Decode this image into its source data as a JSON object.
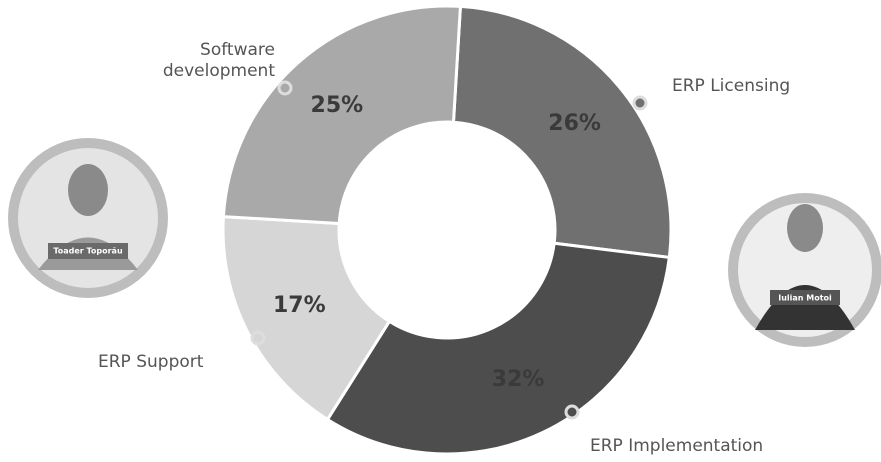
{
  "chart_data": {
    "type": "donut",
    "categories": [
      "ERP Licensing",
      "ERP Implementation",
      "ERP Support",
      "Software development"
    ],
    "values": [
      26,
      32,
      17,
      25
    ],
    "value_labels": [
      "26%",
      "32%",
      "17%",
      "25%"
    ],
    "colors": [
      "#707070",
      "#4d4d4d",
      "#d6d6d6",
      "#a9a9a9"
    ]
  },
  "portraits": [
    {
      "name": "Toader Toporău"
    },
    {
      "name": "Iulian Motoi"
    }
  ]
}
